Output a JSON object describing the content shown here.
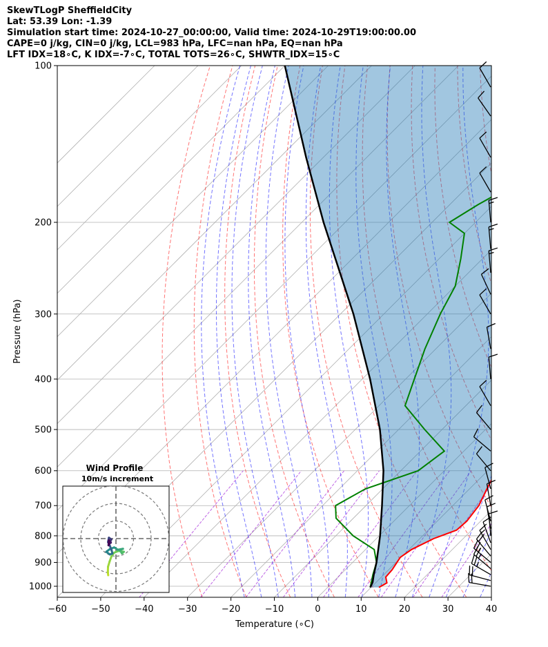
{
  "header": {
    "line1": "SkewTLogP SheffieldCity",
    "line2": "Lat: 53.39   Lon: -1.39",
    "line3": "Simulation start time: 2024-10-27_00:00:00, Valid time: 2024-10-29T19:00:00.00",
    "line4": "CAPE=0 j/kg, CIN=0 j/kg, LCL=983 hPa, LFC=nan hPa, EQ=nan hPa",
    "line5": "LFT IDX=18∘C, K IDX=-7∘C, TOTAL TOTS=26∘C, SHWTR_IDX=15∘C"
  },
  "chart_data": {
    "type": "line",
    "xlabel": "Temperature (∘C)",
    "ylabel": "Pressure (hPa)",
    "xlim": [
      -60,
      40
    ],
    "ylim": [
      1050,
      100
    ],
    "y_scale": "log",
    "x_ticks": [
      -60,
      -50,
      -40,
      -30,
      -20,
      -10,
      0,
      10,
      20,
      30,
      40
    ],
    "x_tick_labels": [
      "−60",
      "−50",
      "−40",
      "−30",
      "−20",
      "−10",
      "0",
      "10",
      "20",
      "30",
      "40"
    ],
    "y_ticks": [
      1000,
      900,
      800,
      700,
      600,
      500,
      400,
      300,
      200,
      100
    ],
    "y_tick_labels": [
      "1000",
      "900",
      "800",
      "700",
      "600",
      "500",
      "400",
      "300",
      "200",
      "100"
    ],
    "grid": true,
    "skew": 45,
    "series": [
      {
        "color": "#ff0000",
        "points": [
          [
            1005,
            11.8
          ],
          [
            985,
            12.6
          ],
          [
            960,
            11.0
          ],
          [
            930,
            10.8
          ],
          [
            880,
            9.8
          ],
          [
            850,
            10.6
          ],
          [
            810,
            13.2
          ],
          [
            780,
            16.5
          ],
          [
            750,
            16.8
          ],
          [
            700,
            16.0
          ],
          [
            650,
            14.0
          ],
          [
            600,
            12.0
          ],
          [
            555,
            11.0
          ],
          [
            520,
            9.5
          ],
          [
            480,
            7.0
          ],
          [
            440,
            4.0
          ],
          [
            400,
            0.0
          ],
          [
            350,
            -5.5
          ],
          [
            300,
            -12.0
          ],
          [
            260,
            -17.5
          ],
          [
            225,
            -24.0
          ],
          [
            210,
            -27.5
          ],
          [
            200,
            -28.5
          ],
          [
            190,
            -31.5
          ],
          [
            175,
            -34.0
          ],
          [
            160,
            -36.0
          ],
          [
            145,
            -38.0
          ],
          [
            130,
            -41.0
          ],
          [
            120,
            -43.0
          ],
          [
            110,
            -46.0
          ],
          [
            100,
            -49.0
          ]
        ]
      },
      {
        "color": "#008000",
        "points": [
          [
            1005,
            9.8
          ],
          [
            950,
            7.5
          ],
          [
            900,
            5.5
          ],
          [
            850,
            2.0
          ],
          [
            800,
            -6.0
          ],
          [
            740,
            -14.0
          ],
          [
            700,
            -17.0
          ],
          [
            650,
            -14.0
          ],
          [
            600,
            -6.0
          ],
          [
            550,
            -4.5
          ],
          [
            500,
            -14.0
          ],
          [
            450,
            -24.0
          ],
          [
            400,
            -28.0
          ],
          [
            350,
            -32.5
          ],
          [
            300,
            -37.0
          ],
          [
            265,
            -40.0
          ],
          [
            235,
            -45.0
          ],
          [
            210,
            -50.0
          ],
          [
            200,
            -56.0
          ],
          [
            185,
            -53.5
          ],
          [
            170,
            -50.0
          ],
          [
            155,
            -52.0
          ],
          [
            140,
            -53.0
          ],
          [
            125,
            -60.0
          ],
          [
            115,
            -63.0
          ],
          [
            105,
            -65.0
          ],
          [
            100,
            -66.0
          ]
        ]
      },
      {
        "color": "#000000",
        "points": [
          [
            1005,
            9.8
          ],
          [
            983,
            9.2
          ],
          [
            950,
            7.7
          ],
          [
            900,
            5.5
          ],
          [
            800,
            0.2
          ],
          [
            700,
            -6.3
          ],
          [
            600,
            -14.0
          ],
          [
            500,
            -24.3
          ],
          [
            400,
            -38.2
          ],
          [
            300,
            -57.0
          ],
          [
            200,
            -85.0
          ],
          [
            150,
            -104.0
          ],
          [
            100,
            -130.0
          ]
        ]
      }
    ],
    "hodograph": {
      "title": "Wind Profile",
      "subtitle": "10m/s increment",
      "rings_ms": [
        10,
        20,
        30
      ],
      "points": [
        [
          -4.4,
          -20.8
        ],
        [
          -4.6,
          -19.0
        ],
        [
          -4.5,
          -16.0
        ],
        [
          -3.6,
          -13.0
        ],
        [
          -2.5,
          -10.0
        ],
        [
          -1.0,
          -8.0
        ],
        [
          1.5,
          -7.0
        ],
        [
          4.5,
          -7.5
        ],
        [
          3.4,
          -8.4
        ],
        [
          2.2,
          -6.5
        ],
        [
          4.0,
          -5.8
        ],
        [
          1.0,
          -6.3
        ],
        [
          -1.0,
          -5.0
        ],
        [
          -3.5,
          -6.0
        ],
        [
          -5.5,
          -7.5
        ],
        [
          -3.5,
          -9.0
        ],
        [
          -2.0,
          -8.5
        ],
        [
          -2.5,
          -6.5
        ],
        [
          -3.5,
          -4.0
        ],
        [
          -4.5,
          -2.0
        ],
        [
          -4.0,
          0.5
        ],
        [
          -2.6,
          -0.5
        ],
        [
          -3.2,
          -1.4
        ],
        [
          -2.9,
          -2.3
        ],
        [
          -3.7,
          -2.8
        ],
        [
          -4.2,
          -3.8
        ],
        [
          -4.0,
          -1.0
        ]
      ]
    },
    "wind_barbs": [
      {
        "p": 1000,
        "dir": 280,
        "spd": 20
      },
      {
        "p": 975,
        "dir": 285,
        "spd": 20
      },
      {
        "p": 950,
        "dir": 300,
        "spd": 25
      },
      {
        "p": 925,
        "dir": 310,
        "spd": 25
      },
      {
        "p": 900,
        "dir": 310,
        "spd": 25
      },
      {
        "p": 875,
        "dir": 320,
        "spd": 20
      },
      {
        "p": 850,
        "dir": 330,
        "spd": 15
      },
      {
        "p": 825,
        "dir": 340,
        "spd": 10
      },
      {
        "p": 800,
        "dir": 355,
        "spd": 10
      },
      {
        "p": 775,
        "dir": 350,
        "spd": 10
      },
      {
        "p": 750,
        "dir": 345,
        "spd": 10
      },
      {
        "p": 700,
        "dir": 350,
        "spd": 10
      },
      {
        "p": 650,
        "dir": 345,
        "spd": 10
      },
      {
        "p": 600,
        "dir": 320,
        "spd": 10
      },
      {
        "p": 550,
        "dir": 310,
        "spd": 10
      },
      {
        "p": 500,
        "dir": 320,
        "spd": 10
      },
      {
        "p": 450,
        "dir": 330,
        "spd": 10
      },
      {
        "p": 400,
        "dir": 355,
        "spd": 10
      },
      {
        "p": 350,
        "dir": 350,
        "spd": 10
      },
      {
        "p": 300,
        "dir": 330,
        "spd": 10
      },
      {
        "p": 275,
        "dir": 335,
        "spd": 10
      },
      {
        "p": 250,
        "dir": 355,
        "spd": 15
      },
      {
        "p": 225,
        "dir": 355,
        "spd": 15
      },
      {
        "p": 200,
        "dir": 355,
        "spd": 15
      },
      {
        "p": 175,
        "dir": 330,
        "spd": 10
      },
      {
        "p": 150,
        "dir": 330,
        "spd": 10
      },
      {
        "p": 125,
        "dir": 325,
        "spd": 10
      },
      {
        "p": 110,
        "dir": 330,
        "spd": 10
      }
    ],
    "line_styles": {
      "dry_adiabat": "#ff0000",
      "moist_adiabat": "#0000ff",
      "mixing_ratio": "#9400d3",
      "fill": "#1f77b4"
    }
  }
}
